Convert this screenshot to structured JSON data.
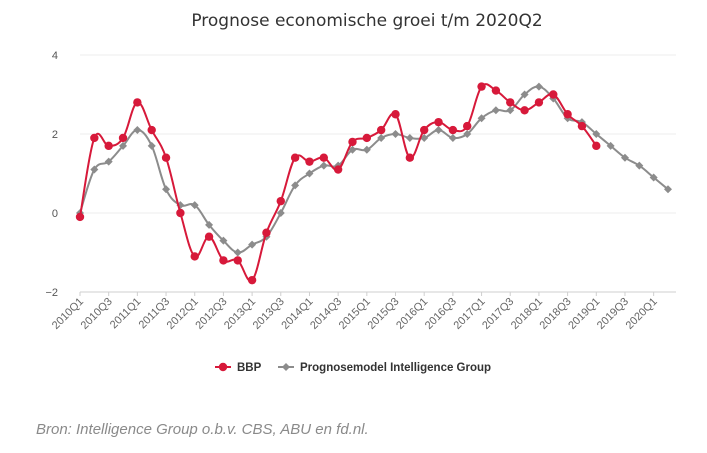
{
  "source": "Bron: Intelligence Group o.b.v. CBS, ABU en fd.nl.",
  "chart_data": {
    "type": "line",
    "title": "Prognose economische groei t/m 2020Q2",
    "xlabel": "",
    "ylabel": "",
    "ylim": [
      -2,
      4
    ],
    "yticks": [
      -2,
      0,
      2,
      4
    ],
    "grid": true,
    "legend_position": "bottom-center",
    "x": [
      "2010Q1",
      "2010Q2",
      "2010Q3",
      "2010Q4",
      "2011Q1",
      "2011Q2",
      "2011Q3",
      "2011Q4",
      "2012Q1",
      "2012Q2",
      "2012Q3",
      "2012Q4",
      "2013Q1",
      "2013Q2",
      "2013Q3",
      "2013Q4",
      "2014Q1",
      "2014Q2",
      "2014Q3",
      "2014Q4",
      "2015Q1",
      "2015Q2",
      "2015Q3",
      "2015Q4",
      "2016Q1",
      "2016Q2",
      "2016Q3",
      "2016Q4",
      "2017Q1",
      "2017Q2",
      "2017Q3",
      "2017Q4",
      "2018Q1",
      "2018Q2",
      "2018Q3",
      "2018Q4",
      "2019Q1",
      "2019Q2",
      "2019Q3",
      "2019Q4",
      "2020Q1",
      "2020Q2"
    ],
    "x_tick_labels": [
      "2010Q1",
      "2010Q3",
      "2011Q1",
      "2011Q3",
      "2012Q1",
      "2012Q3",
      "2013Q1",
      "2013Q3",
      "2014Q1",
      "2014Q3",
      "2015Q1",
      "2015Q3",
      "2016Q1",
      "2016Q3",
      "2017Q1",
      "2017Q3",
      "2018Q1",
      "2018Q3",
      "2019Q1",
      "2019Q3",
      "2020Q1"
    ],
    "series": [
      {
        "name": "BBP",
        "color": "#d7193a",
        "marker": "circle",
        "values": [
          -0.1,
          1.9,
          1.7,
          1.9,
          2.8,
          2.1,
          1.4,
          0.0,
          -1.1,
          -0.6,
          -1.2,
          -1.2,
          -1.7,
          -0.5,
          0.3,
          1.4,
          1.3,
          1.4,
          1.1,
          1.8,
          1.9,
          2.1,
          2.5,
          1.4,
          2.1,
          2.3,
          2.1,
          2.2,
          3.2,
          3.1,
          2.8,
          2.6,
          2.8,
          3.0,
          2.5,
          2.2,
          1.7,
          null,
          null,
          null,
          null,
          null
        ]
      },
      {
        "name": "Prognosemodel Intelligence Group",
        "color": "#8c8c8c",
        "marker": "diamond",
        "values": [
          0.0,
          1.1,
          1.3,
          1.7,
          2.1,
          1.7,
          0.6,
          0.2,
          0.2,
          -0.3,
          -0.7,
          -1.0,
          -0.8,
          -0.6,
          0.0,
          0.7,
          1.0,
          1.2,
          1.2,
          1.6,
          1.6,
          1.9,
          2.0,
          1.9,
          1.9,
          2.1,
          1.9,
          2.0,
          2.4,
          2.6,
          2.6,
          3.0,
          3.2,
          2.9,
          2.4,
          2.3,
          2.0,
          1.7,
          1.4,
          1.2,
          0.9,
          0.6
        ]
      }
    ]
  }
}
